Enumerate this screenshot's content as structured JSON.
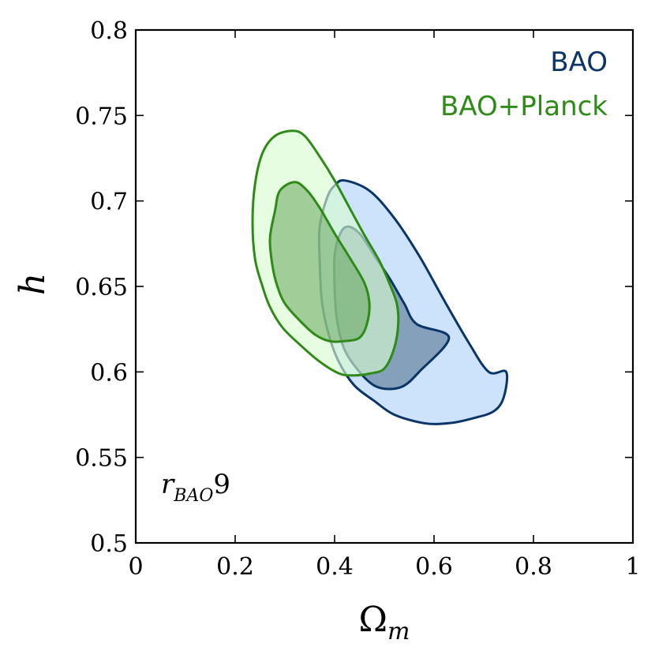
{
  "chart_data": {
    "type": "contour",
    "xlabel": "Ω",
    "xlabel_sub": "m",
    "ylabel": "h",
    "xlim": [
      0,
      1
    ],
    "ylim": [
      0.5,
      0.8
    ],
    "x_ticks": [
      0,
      0.2,
      0.4,
      0.6,
      0.8,
      1
    ],
    "x_tick_labels": [
      "0",
      "0.2",
      "0.4",
      "0.6",
      "0.8",
      "1"
    ],
    "y_ticks": [
      0.5,
      0.55,
      0.6,
      0.65,
      0.7,
      0.75,
      0.8
    ],
    "y_tick_labels": [
      "0.5",
      "0.55",
      "0.6",
      "0.65",
      "0.7",
      "0.75",
      "0.8"
    ],
    "grid": false,
    "legend_placement": "top-right",
    "annotation": {
      "main": "r",
      "sub": "BAO",
      "suffix": "9"
    },
    "series": [
      {
        "name": "BAO",
        "line_color": "#0b3566",
        "fill_outer": "#c9e1fb",
        "fill_inner": "#7f9cb6",
        "contours": {
          "outer_95": [
            [
              0.42,
              0.712
            ],
            [
              0.47,
              0.706
            ],
            [
              0.52,
              0.69
            ],
            [
              0.57,
              0.668
            ],
            [
              0.62,
              0.642
            ],
            [
              0.67,
              0.617
            ],
            [
              0.71,
              0.6
            ],
            [
              0.745,
              0.6
            ],
            [
              0.74,
              0.585
            ],
            [
              0.72,
              0.577
            ],
            [
              0.68,
              0.573
            ],
            [
              0.63,
              0.57
            ],
            [
              0.58,
              0.57
            ],
            [
              0.52,
              0.575
            ],
            [
              0.48,
              0.583
            ],
            [
              0.44,
              0.592
            ],
            [
              0.41,
              0.605
            ],
            [
              0.39,
              0.62
            ],
            [
              0.375,
              0.64
            ],
            [
              0.37,
              0.665
            ],
            [
              0.37,
              0.685
            ],
            [
              0.385,
              0.702
            ],
            [
              0.4,
              0.709
            ]
          ],
          "inner_68": [
            [
              0.425,
              0.685
            ],
            [
              0.45,
              0.681
            ],
            [
              0.48,
              0.668
            ],
            [
              0.51,
              0.655
            ],
            [
              0.54,
              0.64
            ],
            [
              0.565,
              0.628
            ],
            [
              0.63,
              0.62
            ],
            [
              0.57,
              0.6
            ],
            [
              0.54,
              0.592
            ],
            [
              0.51,
              0.59
            ],
            [
              0.48,
              0.592
            ],
            [
              0.45,
              0.6
            ],
            [
              0.42,
              0.613
            ],
            [
              0.405,
              0.63
            ],
            [
              0.4,
              0.65
            ],
            [
              0.4,
              0.668
            ],
            [
              0.41,
              0.68
            ]
          ]
        }
      },
      {
        "name": "BAO+Planck",
        "line_color": "#2e8b17",
        "fill_outer": "#d9fbcf",
        "fill_inner": "#68a85c",
        "contours": {
          "outer_95": [
            [
              0.315,
              0.741
            ],
            [
              0.34,
              0.738
            ],
            [
              0.37,
              0.726
            ],
            [
              0.4,
              0.712
            ],
            [
              0.43,
              0.696
            ],
            [
              0.46,
              0.68
            ],
            [
              0.49,
              0.665
            ],
            [
              0.51,
              0.652
            ],
            [
              0.525,
              0.64
            ],
            [
              0.528,
              0.628
            ],
            [
              0.52,
              0.614
            ],
            [
              0.5,
              0.602
            ],
            [
              0.47,
              0.599
            ],
            [
              0.44,
              0.598
            ],
            [
              0.41,
              0.599
            ],
            [
              0.37,
              0.606
            ],
            [
              0.33,
              0.616
            ],
            [
              0.295,
              0.626
            ],
            [
              0.27,
              0.638
            ],
            [
              0.255,
              0.65
            ],
            [
              0.24,
              0.666
            ],
            [
              0.235,
              0.688
            ],
            [
              0.24,
              0.71
            ],
            [
              0.255,
              0.728
            ],
            [
              0.28,
              0.738
            ]
          ],
          "inner_68": [
            [
              0.32,
              0.711
            ],
            [
              0.345,
              0.706
            ],
            [
              0.37,
              0.696
            ],
            [
              0.4,
              0.681
            ],
            [
              0.43,
              0.667
            ],
            [
              0.46,
              0.652
            ],
            [
              0.47,
              0.64
            ],
            [
              0.465,
              0.628
            ],
            [
              0.45,
              0.62
            ],
            [
              0.42,
              0.618
            ],
            [
              0.39,
              0.618
            ],
            [
              0.36,
              0.622
            ],
            [
              0.33,
              0.63
            ],
            [
              0.3,
              0.64
            ],
            [
              0.285,
              0.65
            ],
            [
              0.275,
              0.662
            ],
            [
              0.27,
              0.678
            ],
            [
              0.28,
              0.694
            ],
            [
              0.29,
              0.706
            ]
          ]
        }
      }
    ]
  }
}
